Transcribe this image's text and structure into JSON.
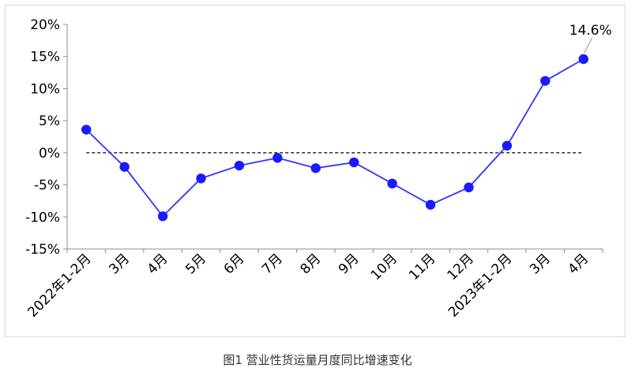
{
  "chart_data": {
    "type": "line",
    "categories": [
      "2022年1-2月",
      "3月",
      "4月",
      "5月",
      "6月",
      "7月",
      "8月",
      "9月",
      "10月",
      "11月",
      "12月",
      "2023年1-2月",
      "3月",
      "4月"
    ],
    "series": [
      {
        "values": [
          3.6,
          -2.2,
          -9.9,
          -4.0,
          -2.0,
          -0.8,
          -2.4,
          -1.5,
          -4.8,
          -8.1,
          -5.4,
          1.1,
          11.2,
          14.6
        ]
      }
    ],
    "ylim": [
      -15,
      20
    ],
    "yticks": [
      -15,
      -10,
      -5,
      0,
      5,
      10,
      15,
      20
    ],
    "ytick_labels": [
      "-15%",
      "-10%",
      "-5%",
      "0%",
      "5%",
      "10%",
      "15%",
      "20%"
    ],
    "reference_line": {
      "y": 0,
      "style": "dashed"
    },
    "annotations": [
      {
        "index": 13,
        "text": "14.6%"
      }
    ],
    "grid": false,
    "colors": {
      "line": "#3333ff",
      "marker": "#1a1aff",
      "axis": "#8c8c8c",
      "reference": "#000000"
    }
  },
  "caption": "图1 营业性货运量月度同比增速变化"
}
